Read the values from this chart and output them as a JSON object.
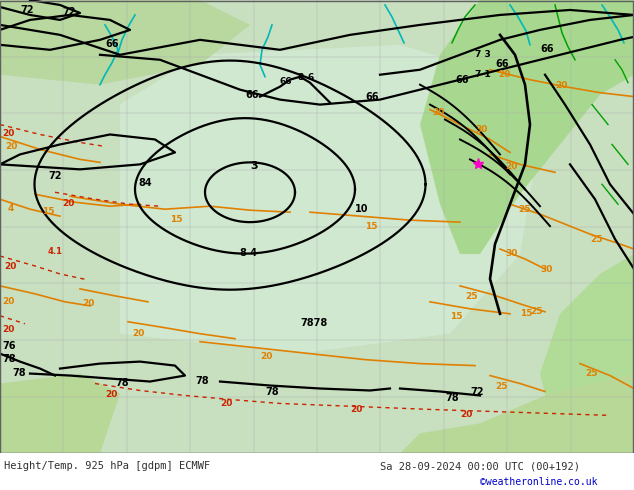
{
  "title_left": "Height/Temp. 925 hPa [gdpm] ECMWF",
  "title_right": "Sa 28-09-2024 00:00 UTC (00+192)",
  "copyright": "©weatheronline.co.uk",
  "title_color": "#303030",
  "copyright_color": "#0000cc",
  "fig_width": 6.34,
  "fig_height": 4.9,
  "dpi": 100,
  "bg_land": "#c8e0a8",
  "bg_sea": "#d0e8d0",
  "grid_color": "#a0a0a0",
  "black": "#000000",
  "orange": "#e08000",
  "red": "#cc2200",
  "cyan": "#00b8b8",
  "green": "#00a000",
  "pink": "#ff00cc",
  "title_fontsize": 7.5,
  "copyright_fontsize": 7
}
